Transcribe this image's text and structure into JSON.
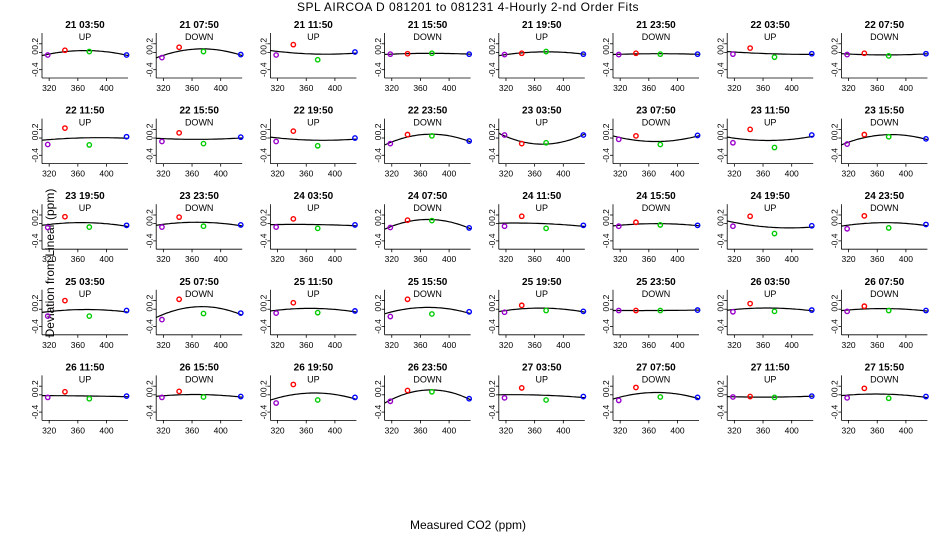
{
  "title": "SPL   AIRCOA D   081201 to 081231   4-Hourly 2-nd Order Fits",
  "xlabel": "Measured CO2 (ppm)",
  "ylabel": "Deviation from Linear (ppm)",
  "chart_data": {
    "type": "scatter",
    "layout": "5 rows x 8 columns of panels",
    "xlim": [
      310,
      430
    ],
    "ylim": [
      -0.5,
      0.45
    ],
    "x_ticks": [
      320,
      360,
      400
    ],
    "y_ticks": [
      -0.4,
      0.0,
      0.2
    ],
    "y_tick_labels": [
      "-0.4",
      "0",
      "0.2"
    ],
    "x_tick_labels": [
      "320",
      "360",
      "400"
    ],
    "point_x": [
      318,
      342,
      376,
      428
    ],
    "point_colors": [
      "#9900cc",
      "#ff0000",
      "#00cc00",
      "#0000ff"
    ],
    "fit_line": "second-order polynomial fit through the 4 points",
    "panels": [
      {
        "title": "21 03:50",
        "dir": "UP",
        "y": [
          -0.06,
          0.05,
          0.02,
          -0.06
        ]
      },
      {
        "title": "21 07:50",
        "dir": "DOWN",
        "y": [
          -0.12,
          0.12,
          0.02,
          -0.05
        ]
      },
      {
        "title": "21 11:50",
        "dir": "UP",
        "y": [
          -0.06,
          0.18,
          -0.17,
          0.01
        ]
      },
      {
        "title": "21 15:50",
        "dir": "DOWN",
        "y": [
          -0.04,
          -0.03,
          -0.02,
          -0.04
        ]
      },
      {
        "title": "21 19:50",
        "dir": "UP",
        "y": [
          -0.05,
          -0.02,
          0.02,
          -0.04
        ]
      },
      {
        "title": "21 23:50",
        "dir": "DOWN",
        "y": [
          -0.05,
          -0.02,
          -0.04,
          -0.04
        ]
      },
      {
        "title": "22 03:50",
        "dir": "UP",
        "y": [
          -0.04,
          0.1,
          -0.11,
          -0.03
        ]
      },
      {
        "title": "22 07:50",
        "dir": "DOWN",
        "y": [
          -0.05,
          -0.02,
          -0.08,
          -0.03
        ]
      },
      {
        "title": "22 11:50",
        "dir": "UP",
        "y": [
          -0.15,
          0.23,
          -0.16,
          0.03
        ]
      },
      {
        "title": "22 15:50",
        "dir": "DOWN",
        "y": [
          -0.08,
          0.12,
          -0.13,
          0.02
        ]
      },
      {
        "title": "22 19:50",
        "dir": "UP",
        "y": [
          -0.08,
          0.16,
          -0.18,
          0.0
        ]
      },
      {
        "title": "22 23:50",
        "dir": "DOWN",
        "y": [
          -0.13,
          0.08,
          0.05,
          -0.07
        ]
      },
      {
        "title": "23 03:50",
        "dir": "UP",
        "y": [
          0.07,
          -0.13,
          -0.11,
          0.07
        ]
      },
      {
        "title": "23 07:50",
        "dir": "DOWN",
        "y": [
          -0.03,
          0.05,
          -0.15,
          0.06
        ]
      },
      {
        "title": "23 11:50",
        "dir": "UP",
        "y": [
          -0.11,
          0.2,
          -0.22,
          0.07
        ]
      },
      {
        "title": "23 15:50",
        "dir": "DOWN",
        "y": [
          -0.14,
          0.08,
          0.03,
          -0.02
        ]
      },
      {
        "title": "23 19:50",
        "dir": "UP",
        "y": [
          -0.09,
          0.16,
          -0.08,
          -0.04
        ]
      },
      {
        "title": "23 23:50",
        "dir": "DOWN",
        "y": [
          -0.08,
          0.15,
          -0.06,
          -0.03
        ]
      },
      {
        "title": "24 03:50",
        "dir": "UP",
        "y": [
          -0.08,
          0.11,
          -0.11,
          -0.03
        ]
      },
      {
        "title": "24 07:50",
        "dir": "DOWN",
        "y": [
          -0.09,
          0.08,
          0.07,
          -0.1
        ]
      },
      {
        "title": "24 11:50",
        "dir": "UP",
        "y": [
          -0.06,
          0.17,
          -0.11,
          -0.04
        ]
      },
      {
        "title": "24 15:50",
        "dir": "DOWN",
        "y": [
          -0.06,
          0.03,
          -0.03,
          -0.04
        ]
      },
      {
        "title": "24 19:50",
        "dir": "UP",
        "y": [
          -0.06,
          0.17,
          -0.23,
          -0.05
        ]
      },
      {
        "title": "24 23:50",
        "dir": "DOWN",
        "y": [
          -0.12,
          0.18,
          -0.1,
          -0.02
        ]
      },
      {
        "title": "25 03:50",
        "dir": "UP",
        "y": [
          -0.16,
          0.2,
          -0.16,
          -0.03
        ]
      },
      {
        "title": "25 07:50",
        "dir": "DOWN",
        "y": [
          -0.24,
          0.23,
          -0.1,
          -0.09
        ]
      },
      {
        "title": "25 11:50",
        "dir": "UP",
        "y": [
          -0.09,
          0.15,
          -0.08,
          -0.04
        ]
      },
      {
        "title": "25 15:50",
        "dir": "DOWN",
        "y": [
          -0.17,
          0.23,
          -0.11,
          -0.06
        ]
      },
      {
        "title": "25 19:50",
        "dir": "UP",
        "y": [
          -0.07,
          0.09,
          -0.03,
          -0.05
        ]
      },
      {
        "title": "25 23:50",
        "dir": "DOWN",
        "y": [
          -0.03,
          -0.03,
          -0.03,
          -0.02
        ]
      },
      {
        "title": "26 03:50",
        "dir": "UP",
        "y": [
          -0.06,
          0.13,
          -0.05,
          -0.02
        ]
      },
      {
        "title": "26 07:50",
        "dir": "DOWN",
        "y": [
          -0.05,
          0.07,
          -0.03,
          -0.03
        ]
      },
      {
        "title": "26 11:50",
        "dir": "UP",
        "y": [
          -0.06,
          0.07,
          -0.09,
          -0.03
        ]
      },
      {
        "title": "26 15:50",
        "dir": "DOWN",
        "y": [
          -0.06,
          0.08,
          -0.05,
          -0.04
        ]
      },
      {
        "title": "26 19:50",
        "dir": "UP",
        "y": [
          -0.19,
          0.24,
          -0.12,
          -0.06
        ]
      },
      {
        "title": "26 23:50",
        "dir": "DOWN",
        "y": [
          -0.15,
          0.1,
          0.07,
          -0.09
        ]
      },
      {
        "title": "27 03:50",
        "dir": "UP",
        "y": [
          -0.07,
          0.16,
          -0.12,
          -0.04
        ]
      },
      {
        "title": "27 07:50",
        "dir": "DOWN",
        "y": [
          -0.13,
          0.17,
          -0.05,
          -0.06
        ]
      },
      {
        "title": "27 11:50",
        "dir": "UP",
        "y": [
          -0.05,
          -0.04,
          -0.06,
          -0.03
        ]
      },
      {
        "title": "27 15:50",
        "dir": "DOWN",
        "y": [
          -0.07,
          0.15,
          -0.08,
          -0.04
        ]
      }
    ]
  }
}
